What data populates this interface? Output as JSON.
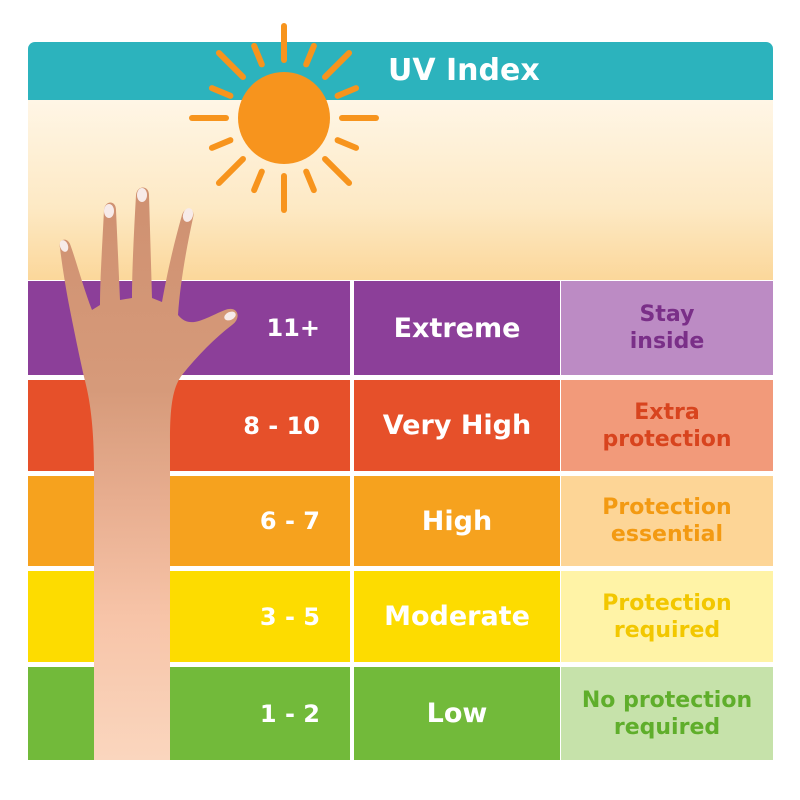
{
  "title": "UV Index",
  "rows": [
    {
      "range": "11+",
      "level": "Extreme",
      "advice": "Stay\ninside",
      "bg": "#8c3f99",
      "advice_bg": "#bc8bc4",
      "advice_color": "#7a2f88"
    },
    {
      "range": "8 - 10",
      "level": "Very High",
      "advice": "Extra\nprotection",
      "bg": "#e6502a",
      "advice_bg": "#f29a7a",
      "advice_color": "#d8441e"
    },
    {
      "range": "6 - 7",
      "level": "High",
      "advice": "Protection\nessential",
      "bg": "#f6a21e",
      "advice_bg": "#fdd596",
      "advice_color": "#f39a12"
    },
    {
      "range": "3 - 5",
      "level": "Moderate",
      "advice": "Protection\nrequired",
      "bg": "#fddc00",
      "advice_bg": "#fff3a6",
      "advice_color": "#f2c700"
    },
    {
      "range": "1 - 2",
      "level": "Low",
      "advice": "No protection\nrequired",
      "bg": "#72ba3a",
      "advice_bg": "#c6e2aa",
      "advice_color": "#5fae2b"
    }
  ],
  "colors": {
    "header": "#2cb3bd",
    "sun": "#f7941d"
  }
}
